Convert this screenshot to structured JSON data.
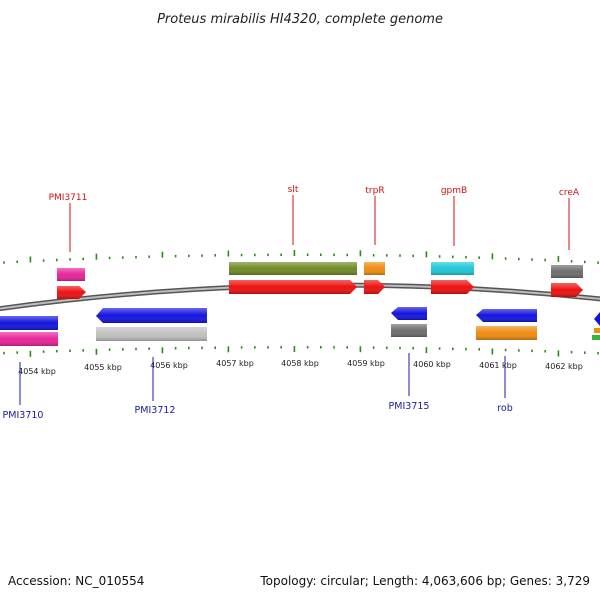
{
  "title": "Proteus mirabilis HI4320, complete genome",
  "footer": {
    "accession": "Accession: NC_010554",
    "summary": "Topology: circular; Length: 4,063,606 bp; Genes: 3,729"
  },
  "colors": {
    "backbone": "#8a8a8a",
    "tick": "#2a8a1a",
    "top_label": "#d01010",
    "bottom_label": "#1a1aa0"
  },
  "axis_labels": [
    "4054 kbp",
    "4055 kbp",
    "4056 kbp",
    "4057 kbp",
    "4058 kbp",
    "4059 kbp",
    "4060 kbp",
    "4061 kbp",
    "4062 kbp"
  ],
  "top_labels": [
    {
      "name": "PMI3711",
      "color": "#d01010"
    },
    {
      "name": "slt",
      "color": "#d01010"
    },
    {
      "name": "trpR",
      "color": "#d01010"
    },
    {
      "name": "gpmB",
      "color": "#d01010"
    },
    {
      "name": "creA",
      "color": "#d01010"
    }
  ],
  "bottom_labels": [
    {
      "name": "PMI3710",
      "color": "#1a1aa0"
    },
    {
      "name": "PMI3712",
      "color": "#1a1aa0"
    },
    {
      "name": "PMI3715",
      "color": "#1a1aa0"
    },
    {
      "name": "rob",
      "color": "#1a1aa0"
    }
  ]
}
